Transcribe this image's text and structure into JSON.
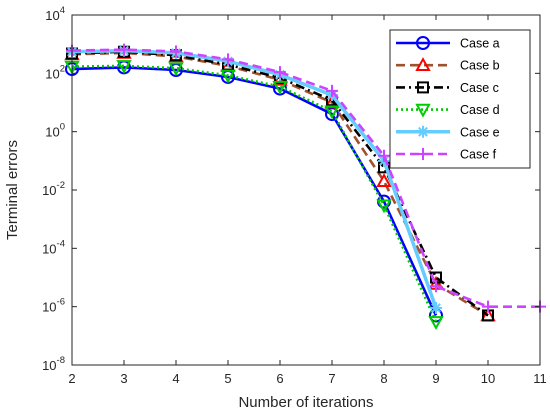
{
  "chart_data": {
    "type": "line",
    "xlabel": "Number of iterations",
    "ylabel": "Terminal errors",
    "x_ticks": [
      "2",
      "3",
      "4",
      "5",
      "6",
      "7",
      "8",
      "9",
      "10",
      "11"
    ],
    "y_ticks": [
      {
        "base": "10",
        "exp": "-8"
      },
      {
        "base": "10",
        "exp": "-6"
      },
      {
        "base": "10",
        "exp": "-4"
      },
      {
        "base": "10",
        "exp": "-2"
      },
      {
        "base": "10",
        "exp": "0"
      },
      {
        "base": "10",
        "exp": "2"
      },
      {
        "base": "10",
        "exp": "4"
      }
    ],
    "xlim": [
      2,
      11
    ],
    "ylim": [
      1e-08,
      10000
    ],
    "yscale": "log",
    "grid": false,
    "legend_position": "top-right",
    "series": [
      {
        "name": "Case a",
        "color": "#0000ff",
        "dash": "solid",
        "marker": "circle",
        "width": 2.6,
        "x": [
          2,
          3,
          4,
          5,
          6,
          7,
          8,
          9
        ],
        "y": [
          140,
          160,
          130,
          75,
          30,
          4,
          0.004,
          5e-07
        ]
      },
      {
        "name": "Case b",
        "color": "#a0522d",
        "dash": "dash",
        "marker": "triangle-up",
        "marker_color": "#ff0000",
        "width": 2.6,
        "x": [
          2,
          3,
          4,
          5,
          6,
          7,
          8,
          9,
          10
        ],
        "y": [
          450,
          500,
          380,
          180,
          60,
          10,
          0.02,
          6e-06,
          5e-07
        ]
      },
      {
        "name": "Case c",
        "color": "#000000",
        "dash": "dashdot",
        "marker": "square",
        "width": 2.6,
        "x": [
          2,
          3,
          4,
          5,
          6,
          7,
          8,
          9,
          10
        ],
        "y": [
          480,
          550,
          420,
          200,
          70,
          12,
          0.06,
          1e-05,
          5e-07
        ]
      },
      {
        "name": "Case d",
        "color": "#00cc00",
        "dash": "dot",
        "marker": "triangle-down",
        "width": 2.6,
        "x": [
          2,
          3,
          4,
          5,
          6,
          7,
          8,
          9
        ],
        "y": [
          170,
          180,
          150,
          85,
          35,
          5,
          0.003,
          3e-07
        ]
      },
      {
        "name": "Case e",
        "color": "#66ccff",
        "dash": "solid",
        "marker": "asterisk",
        "width": 3.5,
        "x": [
          2,
          3,
          4,
          5,
          6,
          7,
          8,
          9
        ],
        "y": [
          550,
          600,
          500,
          260,
          90,
          18,
          0.1,
          9e-07
        ]
      },
      {
        "name": "Case f",
        "color": "#cc44ff",
        "dash": "dash",
        "marker": "plus",
        "width": 2.6,
        "x": [
          2,
          3,
          4,
          5,
          6,
          7,
          8,
          9,
          10,
          11
        ],
        "y": [
          600,
          650,
          560,
          300,
          110,
          25,
          0.15,
          5e-06,
          1e-06,
          1e-06
        ]
      }
    ]
  }
}
